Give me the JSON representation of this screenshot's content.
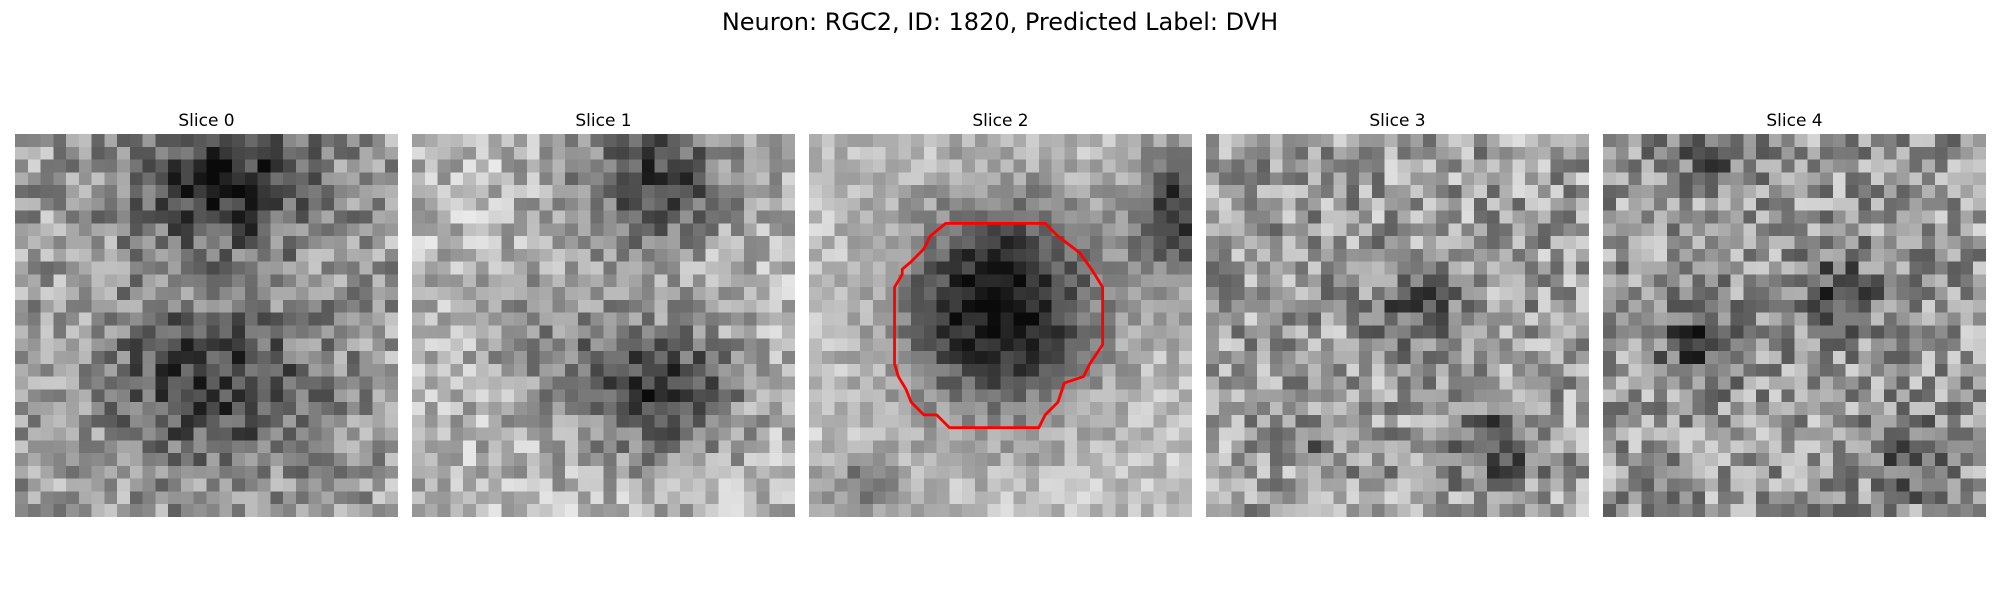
{
  "figure": {
    "title": "Neuron: RGC2, ID: 1820, Predicted Label: DVH"
  },
  "panels": [
    {
      "title": "Slice 0",
      "contour": false
    },
    {
      "title": "Slice 1",
      "contour": false
    },
    {
      "title": "Slice 2",
      "contour": true,
      "contour_color": "#ff0000"
    },
    {
      "title": "Slice 3",
      "contour": false
    },
    {
      "title": "Slice 4",
      "contour": false
    }
  ]
}
